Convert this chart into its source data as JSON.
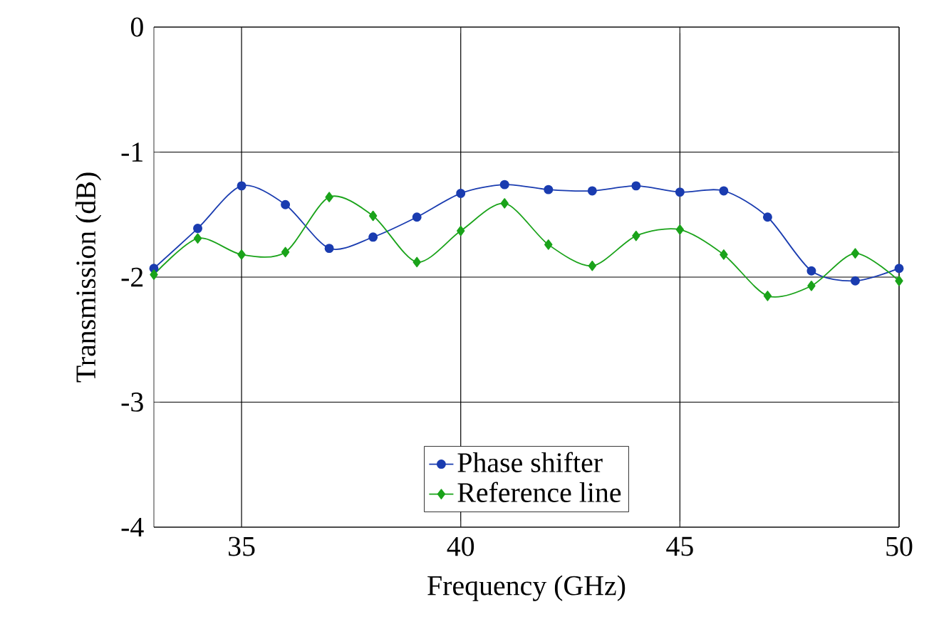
{
  "chart_data": {
    "type": "line",
    "xlabel": "Frequency (GHz)",
    "ylabel": "Transmission (dB)",
    "x": [
      33,
      34,
      35,
      36,
      37,
      38,
      39,
      40,
      41,
      42,
      43,
      44,
      45,
      46,
      47,
      48,
      49,
      50
    ],
    "series": [
      {
        "name": "Phase shifter",
        "color": "#1a3cb0",
        "marker": "circle",
        "values": [
          -1.93,
          -1.61,
          -1.27,
          -1.42,
          -1.77,
          -1.68,
          -1.52,
          -1.33,
          -1.26,
          -1.3,
          -1.31,
          -1.27,
          -1.32,
          -1.31,
          -1.52,
          -1.95,
          -2.03,
          -1.93
        ]
      },
      {
        "name": "Reference line",
        "color": "#1aa31a",
        "marker": "diamond",
        "values": [
          -1.98,
          -1.69,
          -1.82,
          -1.8,
          -1.36,
          -1.51,
          -1.88,
          -1.63,
          -1.41,
          -1.74,
          -1.91,
          -1.67,
          -1.62,
          -1.82,
          -2.15,
          -2.07,
          -1.81,
          -2.03
        ]
      }
    ],
    "xlim": [
      33,
      50
    ],
    "ylim": [
      -4,
      0
    ],
    "xticks": [
      35,
      40,
      45,
      50
    ],
    "yticks": [
      -4,
      -3,
      -2,
      -1,
      0
    ],
    "grid": true,
    "legend": "bottom",
    "line_style": "solid"
  }
}
